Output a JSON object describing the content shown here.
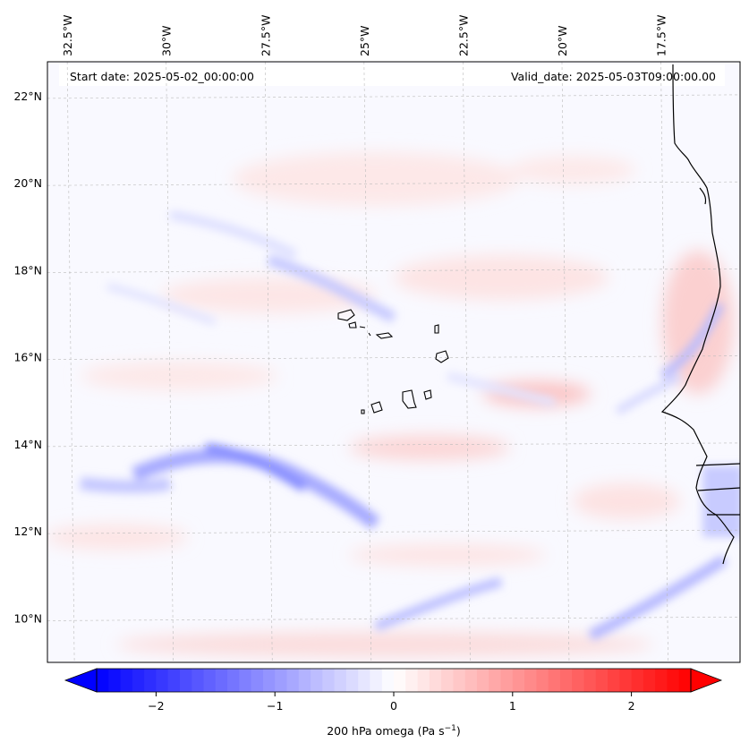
{
  "header": {
    "start_date": "Start date: 2025-05-02_00:00:00",
    "valid_date": "Valid_date: 2025-05-03T09:00:00.00"
  },
  "map": {
    "lon_range": [
      -33.0,
      -15.5
    ],
    "lat_range": [
      9.0,
      22.8
    ],
    "lon_ticks": [
      {
        "value": -32.5,
        "label": "32.5°W"
      },
      {
        "value": -30.0,
        "label": "30°W"
      },
      {
        "value": -27.5,
        "label": "27.5°W"
      },
      {
        "value": -25.0,
        "label": "25°W"
      },
      {
        "value": -22.5,
        "label": "22.5°W"
      },
      {
        "value": -20.0,
        "label": "20°W"
      },
      {
        "value": -17.5,
        "label": "17.5°W"
      }
    ],
    "lat_ticks": [
      {
        "value": 22,
        "label": "22°N"
      },
      {
        "value": 20,
        "label": "20°N"
      },
      {
        "value": 18,
        "label": "18°N"
      },
      {
        "value": 16,
        "label": "16°N"
      },
      {
        "value": 14,
        "label": "14°N"
      },
      {
        "value": 12,
        "label": "12°N"
      },
      {
        "value": 10,
        "label": "10°N"
      }
    ]
  },
  "colorbar": {
    "vmin": -2.5,
    "vmax": 2.5,
    "ticks": [
      {
        "value": -2,
        "label": "−2"
      },
      {
        "value": -1,
        "label": "−1"
      },
      {
        "value": 0,
        "label": "0"
      },
      {
        "value": 1,
        "label": "1"
      },
      {
        "value": 2,
        "label": "2"
      }
    ],
    "label_prefix": "200 hPa omega (Pa s",
    "label_exp": "−1",
    "label_suffix": ")",
    "colors": {
      "neg": "#0000ff",
      "mid": "#ffffff",
      "pos": "#ff0000"
    }
  }
}
